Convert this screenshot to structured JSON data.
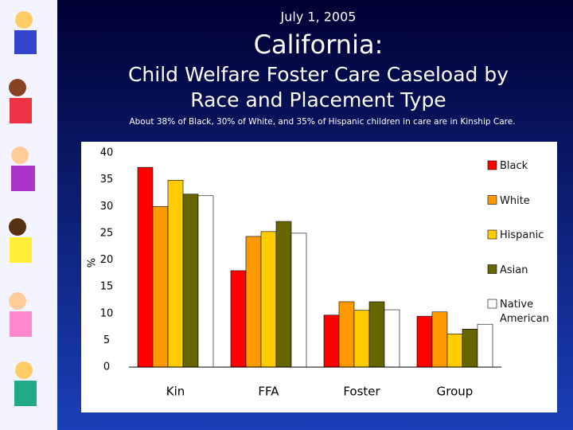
{
  "date": "July 1, 2005",
  "chart_data": {
    "type": "bar",
    "title": "California:",
    "subtitle": "Child Welfare Foster Care Caseload by Race and Placement Type",
    "annotation": "About 38% of Black, 30% of White, and 35% of Hispanic children in care are in Kinship Care.",
    "y_label": "%",
    "categories": [
      "Kin",
      "FFA",
      "Foster",
      "Group"
    ],
    "series": [
      {
        "name": "Black",
        "color": "#ff0000",
        "values": [
          37.3,
          18.0,
          9.7,
          9.5
        ]
      },
      {
        "name": "White",
        "color": "#ff9900",
        "values": [
          30.0,
          24.4,
          12.2,
          10.3
        ]
      },
      {
        "name": "Hispanic",
        "color": "#ffcc00",
        "values": [
          34.9,
          25.3,
          10.6,
          6.2
        ]
      },
      {
        "name": "Asian",
        "color": "#666600",
        "values": [
          32.3,
          27.2,
          12.2,
          7.1
        ]
      },
      {
        "name": "Native American",
        "color": "#ffffff",
        "values": [
          32.0,
          25.0,
          10.7,
          8.0
        ]
      }
    ],
    "ylim": [
      0,
      40
    ],
    "yticks": [
      0,
      5,
      10,
      15,
      20,
      25,
      30,
      35,
      40
    ],
    "grid": false,
    "legend": "right"
  }
}
